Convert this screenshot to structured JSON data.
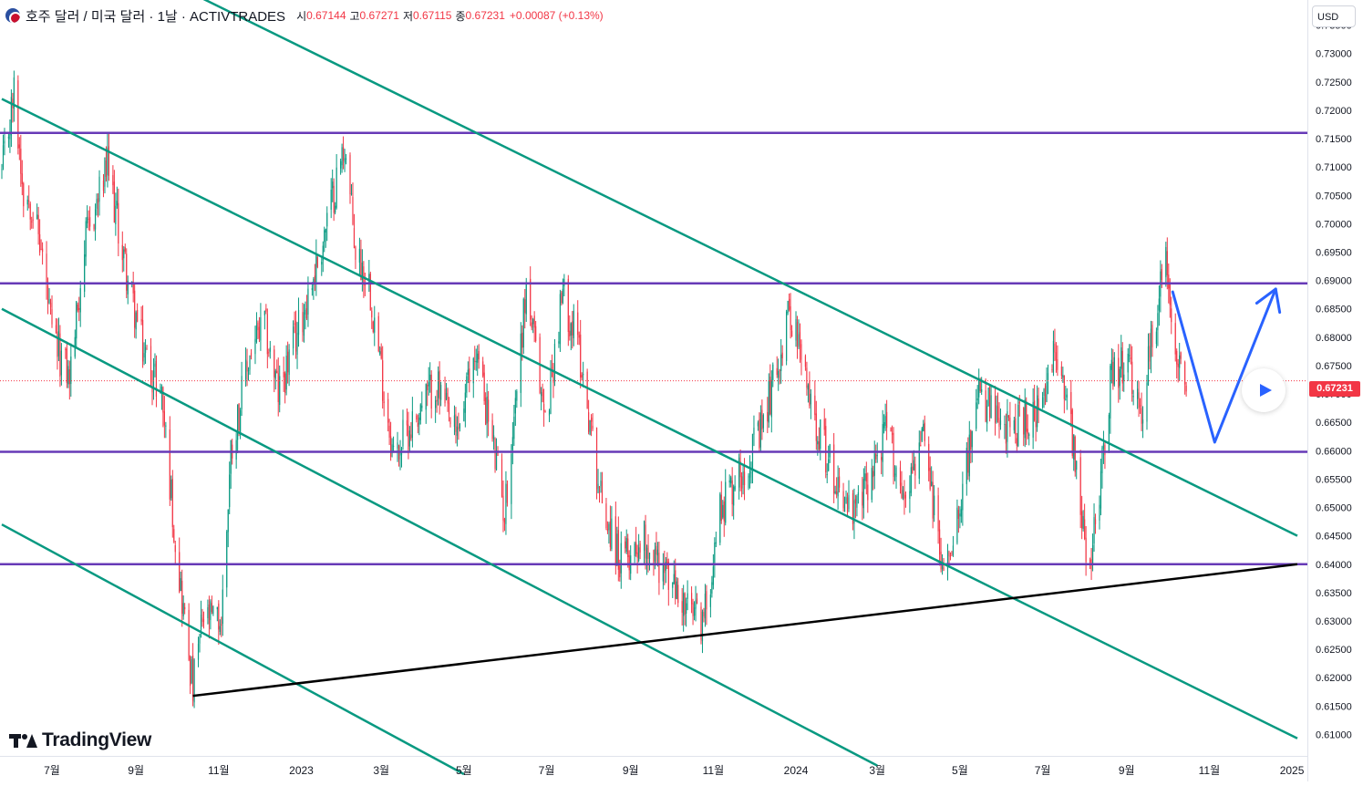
{
  "header": {
    "symbol": "호주 달러 / 미국 달러 · 1날 · ACTIVTRADES",
    "open_label": "시",
    "open": "0.67144",
    "high_label": "고",
    "high": "0.67271",
    "low_label": "저",
    "low": "0.67115",
    "close_label": "종",
    "close": "0.67231",
    "change": "+0.00087 (+0.13%)"
  },
  "currency_button": "USD",
  "last_price_tag": "0.67231",
  "logo": {
    "text": "TradingView"
  },
  "colors": {
    "up": "#089981",
    "down": "#f23645",
    "channel": "#089981",
    "horizontal": "#673ab7",
    "trendline": "#000000",
    "projection": "#2962ff"
  },
  "chart_data": {
    "type": "candlestick",
    "symbol": "AUD/USD",
    "timeframe": "1D",
    "y_axis": {
      "side": "right",
      "range": [
        0.6075,
        0.7375
      ],
      "ticks": [
        "0.73500",
        "0.73000",
        "0.72500",
        "0.72000",
        "0.71500",
        "0.71000",
        "0.70500",
        "0.70000",
        "0.69500",
        "0.69000",
        "0.68500",
        "0.68000",
        "0.67500",
        "0.67000",
        "0.66500",
        "0.66000",
        "0.65500",
        "0.65000",
        "0.64500",
        "0.64000",
        "0.63500",
        "0.63000",
        "0.62500",
        "0.62000",
        "0.61500",
        "0.61000"
      ]
    },
    "x_axis": {
      "range": [
        "2022-05-25",
        "2025-01-05"
      ],
      "ticks": [
        {
          "date": "2022-05-01",
          "label": "5월"
        },
        {
          "date": "2022-07-01",
          "label": "7월"
        },
        {
          "date": "2022-09-01",
          "label": "9월"
        },
        {
          "date": "2022-11-01",
          "label": "11월"
        },
        {
          "date": "2023-01-01",
          "label": "2023"
        },
        {
          "date": "2023-03-01",
          "label": "3월"
        },
        {
          "date": "2023-05-01",
          "label": "5월"
        },
        {
          "date": "2023-07-01",
          "label": "7월"
        },
        {
          "date": "2023-09-01",
          "label": "9월"
        },
        {
          "date": "2023-11-01",
          "label": "11월"
        },
        {
          "date": "2024-01-01",
          "label": "2024"
        },
        {
          "date": "2024-03-01",
          "label": "3월"
        },
        {
          "date": "2024-05-01",
          "label": "5월"
        },
        {
          "date": "2024-07-01",
          "label": "7월"
        },
        {
          "date": "2024-09-01",
          "label": "9월"
        },
        {
          "date": "2024-11-01",
          "label": "11월"
        },
        {
          "date": "2025-01-01",
          "label": "2025"
        }
      ]
    },
    "price_path": [
      {
        "date": "2022-05-25",
        "close": 0.7085
      },
      {
        "date": "2022-06-03",
        "close": 0.723
      },
      {
        "date": "2022-06-10",
        "close": 0.706
      },
      {
        "date": "2022-06-16",
        "close": 0.704
      },
      {
        "date": "2022-06-24",
        "close": 0.694
      },
      {
        "date": "2022-07-01",
        "close": 0.68
      },
      {
        "date": "2022-07-14",
        "close": 0.673
      },
      {
        "date": "2022-07-25",
        "close": 0.696
      },
      {
        "date": "2022-08-11",
        "close": 0.71
      },
      {
        "date": "2022-08-26",
        "close": 0.69
      },
      {
        "date": "2022-09-06",
        "close": 0.678
      },
      {
        "date": "2022-09-20",
        "close": 0.67
      },
      {
        "date": "2022-10-01",
        "close": 0.642
      },
      {
        "date": "2022-10-13",
        "close": 0.618
      },
      {
        "date": "2022-10-20",
        "close": 0.63
      },
      {
        "date": "2022-11-03",
        "close": 0.63
      },
      {
        "date": "2022-11-10",
        "close": 0.66
      },
      {
        "date": "2022-11-25",
        "close": 0.678
      },
      {
        "date": "2022-12-05",
        "close": 0.682
      },
      {
        "date": "2022-12-15",
        "close": 0.67
      },
      {
        "date": "2022-12-28",
        "close": 0.68
      },
      {
        "date": "2023-01-15",
        "close": 0.695
      },
      {
        "date": "2023-02-02",
        "close": 0.714
      },
      {
        "date": "2023-02-10",
        "close": 0.695
      },
      {
        "date": "2023-02-20",
        "close": 0.69
      },
      {
        "date": "2023-03-01",
        "close": 0.674
      },
      {
        "date": "2023-03-10",
        "close": 0.659
      },
      {
        "date": "2023-03-24",
        "close": 0.665
      },
      {
        "date": "2023-04-10",
        "close": 0.672
      },
      {
        "date": "2023-04-25",
        "close": 0.662
      },
      {
        "date": "2023-05-10",
        "close": 0.678
      },
      {
        "date": "2023-05-31",
        "close": 0.649
      },
      {
        "date": "2023-06-16",
        "close": 0.689
      },
      {
        "date": "2023-06-30",
        "close": 0.665
      },
      {
        "date": "2023-07-13",
        "close": 0.688
      },
      {
        "date": "2023-07-25",
        "close": 0.678
      },
      {
        "date": "2023-08-10",
        "close": 0.652
      },
      {
        "date": "2023-08-25",
        "close": 0.64
      },
      {
        "date": "2023-09-10",
        "close": 0.645
      },
      {
        "date": "2023-09-28",
        "close": 0.638
      },
      {
        "date": "2023-10-12",
        "close": 0.632
      },
      {
        "date": "2023-10-25",
        "close": 0.63
      },
      {
        "date": "2023-11-06",
        "close": 0.65
      },
      {
        "date": "2023-11-20",
        "close": 0.656
      },
      {
        "date": "2023-12-05",
        "close": 0.662
      },
      {
        "date": "2023-12-28",
        "close": 0.685
      },
      {
        "date": "2024-01-10",
        "close": 0.67
      },
      {
        "date": "2024-01-25",
        "close": 0.658
      },
      {
        "date": "2024-02-13",
        "close": 0.648
      },
      {
        "date": "2024-03-08",
        "close": 0.664
      },
      {
        "date": "2024-03-20",
        "close": 0.652
      },
      {
        "date": "2024-04-04",
        "close": 0.662
      },
      {
        "date": "2024-04-19",
        "close": 0.638
      },
      {
        "date": "2024-05-01",
        "close": 0.652
      },
      {
        "date": "2024-05-16",
        "close": 0.67
      },
      {
        "date": "2024-06-01",
        "close": 0.663
      },
      {
        "date": "2024-06-15",
        "close": 0.665
      },
      {
        "date": "2024-07-01",
        "close": 0.667
      },
      {
        "date": "2024-07-10",
        "close": 0.677
      },
      {
        "date": "2024-07-18",
        "close": 0.672
      },
      {
        "date": "2024-08-05",
        "close": 0.638
      },
      {
        "date": "2024-08-20",
        "close": 0.672
      },
      {
        "date": "2024-09-01",
        "close": 0.676
      },
      {
        "date": "2024-09-11",
        "close": 0.665
      },
      {
        "date": "2024-09-25",
        "close": 0.688
      },
      {
        "date": "2024-09-30",
        "close": 0.693
      },
      {
        "date": "2024-10-08",
        "close": 0.678
      },
      {
        "date": "2024-10-15",
        "close": 0.6723
      }
    ],
    "horizontal_levels": [
      0.716,
      0.6895,
      0.6598,
      0.64
    ],
    "channel_lines": [
      {
        "p1": {
          "date": "2022-06-20",
          "price": 0.754
        },
        "p2": {
          "date": "2025-01-05",
          "price": 0.645
        }
      },
      {
        "p1": {
          "date": "2022-05-25",
          "price": 0.722
        },
        "p2": {
          "date": "2025-01-05",
          "price": 0.6093
        }
      },
      {
        "p1": {
          "date": "2022-05-25",
          "price": 0.685
        },
        "p2": {
          "date": "2024-03-01",
          "price": 0.6045
        }
      },
      {
        "p1": {
          "date": "2022-05-25",
          "price": 0.647
        },
        "p2": {
          "date": "2023-05-01",
          "price": 0.603
        }
      }
    ],
    "trendline": {
      "p1": {
        "date": "2022-10-13",
        "price": 0.6168
      },
      "p2": {
        "date": "2025-01-05",
        "price": 0.64
      }
    },
    "projection": [
      {
        "date": "2024-10-05",
        "price": 0.688
      },
      {
        "date": "2024-11-05",
        "price": 0.6615
      },
      {
        "date": "2024-12-20",
        "price": 0.6885
      }
    ]
  }
}
